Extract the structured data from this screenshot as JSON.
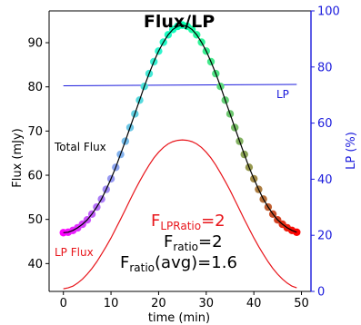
{
  "chart_data": {
    "type": "scatter",
    "title": "Flux/LP",
    "xlabel": "time (min)",
    "ylabel_left": "Flux (mJy)",
    "ylabel_right": "LP (%)",
    "xlim": [
      -3,
      52
    ],
    "ylim_left": [
      33.7,
      97.2
    ],
    "ylim_right": [
      0,
      100
    ],
    "xticks": [
      0,
      10,
      20,
      30,
      40,
      50
    ],
    "yticks_left": [
      40,
      50,
      60,
      70,
      80,
      90
    ],
    "yticks_right": [
      0,
      20,
      40,
      60,
      80,
      100
    ],
    "left_axis_color": "#000000",
    "right_axis_color": "#1a1adc",
    "series": [
      {
        "name": "Total Flux",
        "kind": "points+fit",
        "color": "#000000",
        "points_colormap": "rainbow",
        "x": [
          0,
          1,
          2,
          3,
          4,
          5,
          6,
          7,
          8,
          9,
          10,
          11,
          12,
          13,
          14,
          15,
          16,
          17,
          18,
          19,
          20,
          21,
          22,
          23,
          24,
          25,
          26,
          27,
          28,
          29,
          30,
          31,
          32,
          33,
          34,
          35,
          36,
          37,
          38,
          39,
          40,
          41,
          42,
          43,
          44,
          45,
          46,
          47,
          48,
          49
        ],
        "y": [
          47.0,
          47.1,
          47.5,
          48.1,
          48.9,
          49.9,
          51.2,
          52.8,
          54.6,
          56.8,
          59.2,
          61.8,
          64.7,
          67.7,
          70.8,
          73.9,
          77.0,
          80.1,
          83.0,
          85.7,
          88.1,
          90.1,
          91.8,
          93.0,
          93.7,
          94.0,
          93.7,
          93.0,
          91.8,
          90.1,
          88.1,
          85.7,
          83.0,
          80.1,
          77.0,
          73.9,
          70.8,
          67.7,
          64.7,
          61.8,
          59.2,
          56.8,
          54.6,
          52.8,
          51.2,
          49.9,
          48.9,
          48.1,
          47.5,
          47.1
        ]
      },
      {
        "name": "LP",
        "kind": "line",
        "axis": "right",
        "color": "#1a1adc",
        "x": [
          0,
          49
        ],
        "y": [
          73.3,
          73.8
        ]
      },
      {
        "name": "LP Flux",
        "kind": "line",
        "color": "#e8141a",
        "x": [
          0,
          1,
          2,
          3,
          4,
          5,
          6,
          7,
          8,
          9,
          10,
          11,
          12,
          13,
          14,
          15,
          16,
          17,
          18,
          19,
          20,
          21,
          22,
          23,
          24,
          25,
          26,
          27,
          28,
          29,
          30,
          31,
          32,
          33,
          34,
          35,
          36,
          37,
          38,
          39,
          40,
          41,
          42,
          43,
          44,
          45,
          46,
          47,
          48,
          49
        ],
        "y": [
          34.3,
          34.5,
          34.9,
          35.6,
          36.5,
          37.6,
          38.9,
          40.4,
          42.1,
          43.9,
          45.8,
          47.9,
          50.0,
          52.2,
          54.4,
          56.6,
          58.6,
          60.5,
          62.3,
          63.9,
          65.2,
          66.3,
          67.1,
          67.6,
          67.9,
          68.0,
          67.9,
          67.6,
          67.1,
          66.3,
          65.2,
          63.9,
          62.3,
          60.5,
          58.6,
          56.6,
          54.4,
          52.2,
          50.0,
          47.9,
          45.8,
          43.9,
          42.1,
          40.4,
          38.9,
          37.6,
          36.5,
          35.6,
          34.9,
          34.5
        ]
      }
    ],
    "annotations": {
      "total_flux_label": "Total Flux",
      "lp_label": "LP",
      "lp_flux_label": "LP Flux",
      "f_lpratio_main": "F",
      "f_lpratio_sub": "LPRatio",
      "f_lpratio_value": "=2",
      "f_ratio_main": "F",
      "f_ratio_sub": "ratio",
      "f_ratio_value": "=2",
      "f_ratio_avg_main": "F",
      "f_ratio_avg_sub": "ratio",
      "f_ratio_avg_value": "(avg)=1.6",
      "red_color": "#e8141a"
    }
  }
}
